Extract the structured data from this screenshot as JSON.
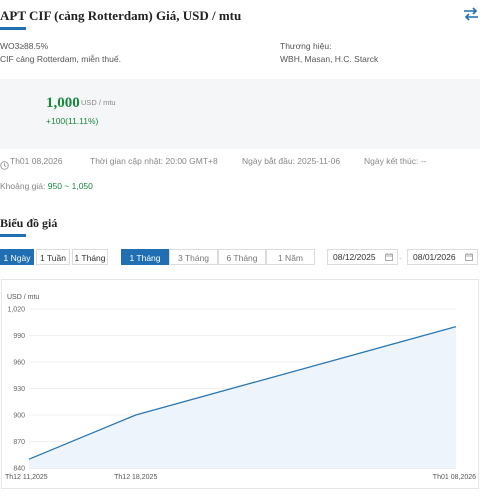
{
  "header": {
    "title": "APT CIF (cảng Rotterdam) Giá, USD / mtu"
  },
  "info": {
    "spec_line1": "WO3≥88.5%",
    "spec_line2": "CIF cảng Rotterdam, miễn thuế.",
    "brand_label": "Thương hiệu:",
    "brand_value": "WBH, Masan, H.C. Starck"
  },
  "price": {
    "value": "1,000",
    "unit": "USD / mtu",
    "change": "+100(11.11%)"
  },
  "meta": {
    "date": "Th01 08,2026",
    "updated": "Thời gian cập nhật: 20:00 GMT+8",
    "start": "Ngày bắt đầu: 2025-11-06",
    "end": "Ngày kết thúc: --"
  },
  "range": {
    "label": "Khoảng giá:",
    "value": "950 ~ 1,050"
  },
  "section_title": "Biểu đồ giá",
  "period_buttons": [
    "1 Ngày",
    "1 Tuần",
    "1 Tháng"
  ],
  "range_buttons": [
    "1 Tháng",
    "3 Tháng",
    "6 Tháng",
    "1 Năm"
  ],
  "date_from": "08/12/2025",
  "date_to": "08/01/2026",
  "date_sep": "-",
  "colors": {
    "accent": "#1f6fb2",
    "positive": "#17883d"
  },
  "icons": {
    "swap": "swap-arrows-icon",
    "calendar": "calendar-icon",
    "clock": "clock-icon"
  },
  "chart_data": {
    "type": "area",
    "ylabel": "USD / mtu",
    "ylim": [
      840,
      1020
    ],
    "yticks": [
      840,
      870,
      900,
      930,
      960,
      990,
      1020
    ],
    "ytick_labels": [
      "840",
      "870",
      "900",
      "930",
      "960",
      "990",
      "1,020"
    ],
    "x": [
      "Th12 11,2025",
      "Th12 18,2025",
      "Th01 08,2026"
    ],
    "xtick_labels": [
      "Th12 11,2025",
      "Th12 18,2025",
      "Th01 08,2026"
    ],
    "values": [
      850,
      900,
      1000
    ],
    "grid": true
  }
}
